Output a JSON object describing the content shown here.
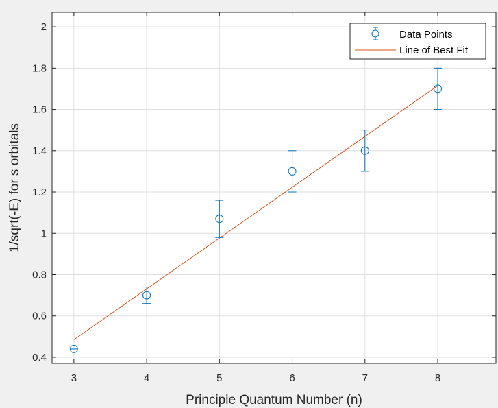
{
  "chart_data": {
    "type": "scatter",
    "xlabel": "Principle Quantum Number (n)",
    "ylabel": "1/sqrt(-E) for s orbitals",
    "xlim": [
      2.7,
      8.8
    ],
    "ylim": [
      0.37,
      2.07
    ],
    "x_ticks": [
      "3",
      "4",
      "5",
      "6",
      "7",
      "8"
    ],
    "y_ticks": [
      "0.4",
      "0.6",
      "0.8",
      "1",
      "1.2",
      "1.4",
      "1.6",
      "1.8",
      "2"
    ],
    "grid": true,
    "legend_position": "top-right",
    "series": [
      {
        "name": "Data Points",
        "kind": "errorbar",
        "color": "#0072BD",
        "x": [
          3,
          4,
          5,
          6,
          7,
          8
        ],
        "y": [
          0.44,
          0.7,
          1.07,
          1.3,
          1.4,
          1.7
        ],
        "err": [
          0.0,
          0.04,
          0.09,
          0.1,
          0.1,
          0.1
        ]
      },
      {
        "name": "Line of Best Fit",
        "kind": "line",
        "color": "#D95319",
        "x": [
          3,
          8
        ],
        "y": [
          0.485,
          1.715
        ]
      }
    ]
  }
}
